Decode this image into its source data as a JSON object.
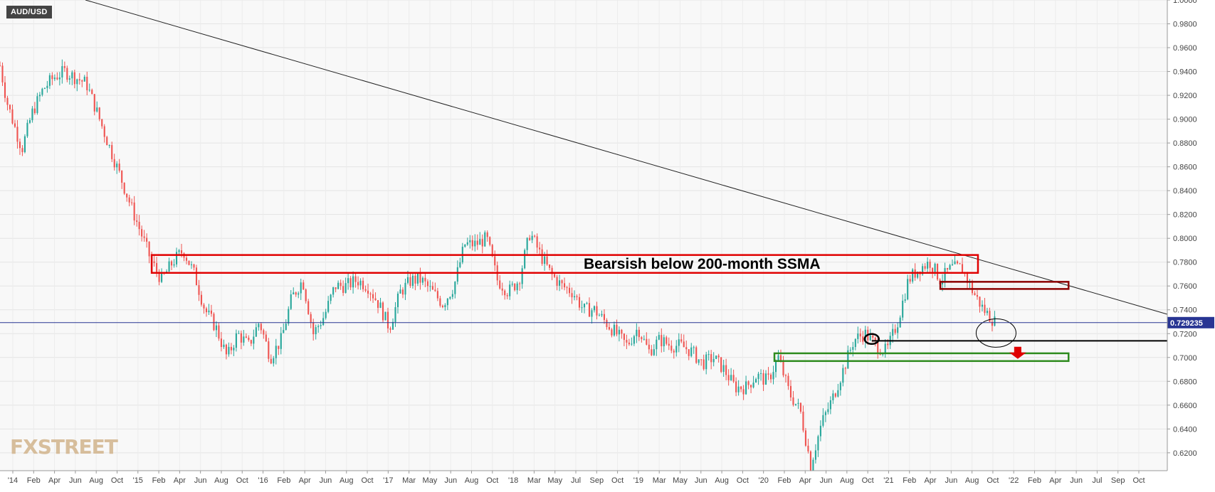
{
  "symbol": "AUD/USD",
  "watermark": "FXSTREET",
  "current_price_label": "0.729235",
  "annotation_text": "Bearsish below 200-month SSMA",
  "colors": {
    "bull": "#26a69a",
    "bear": "#ef5350",
    "zone_red": "#e00000",
    "zone_darkred": "#8b0000",
    "zone_green": "#2e8b1e",
    "price_line": "#283593",
    "price_tag": "#283593"
  },
  "chart_data": {
    "type": "candlestick",
    "title": "",
    "xlabel": "",
    "ylabel": "",
    "ylim": [
      0.605,
      1.0
    ],
    "y_ticks": [
      "1.0000",
      "0.9800",
      "0.9600",
      "0.9400",
      "0.9200",
      "0.9000",
      "0.8800",
      "0.8600",
      "0.8400",
      "0.8200",
      "0.8000",
      "0.7800",
      "0.7600",
      "0.7400",
      "0.7200",
      "0.7000",
      "0.6800",
      "0.6600",
      "0.6400",
      "0.6200"
    ],
    "x_ticks": [
      "'14",
      "Feb",
      "Apr",
      "Jun",
      "Aug",
      "Oct",
      "'15",
      "Feb",
      "Apr",
      "Jun",
      "Aug",
      "Oct",
      "'16",
      "Feb",
      "Apr",
      "Jun",
      "Aug",
      "Oct",
      "'17",
      "Mar",
      "May",
      "Jun",
      "Aug",
      "Oct",
      "'18",
      "Mar",
      "May",
      "Jul",
      "Sep",
      "Oct",
      "'19",
      "Mar",
      "May",
      "Jun",
      "Aug",
      "Oct",
      "'20",
      "Feb",
      "Apr",
      "Jun",
      "Aug",
      "Oct",
      "'21",
      "Feb",
      "Apr",
      "Jun",
      "Aug",
      "Oct",
      "'22",
      "Feb",
      "Apr",
      "Jun",
      "Jul",
      "Sep",
      "Oct"
    ],
    "x_range": [
      "2013-12-01",
      "2022-11-30"
    ],
    "path_points": [
      [
        "2013-12-01",
        0.945
      ],
      [
        "2013-12-20",
        0.915
      ],
      [
        "2014-01-15",
        0.89
      ],
      [
        "2014-02-01",
        0.875
      ],
      [
        "2014-03-01",
        0.905
      ],
      [
        "2014-04-01",
        0.925
      ],
      [
        "2014-05-01",
        0.935
      ],
      [
        "2014-06-01",
        0.94
      ],
      [
        "2014-07-01",
        0.935
      ],
      [
        "2014-08-01",
        0.93
      ],
      [
        "2014-09-01",
        0.905
      ],
      [
        "2014-10-01",
        0.88
      ],
      [
        "2014-11-01",
        0.855
      ],
      [
        "2014-12-01",
        0.83
      ],
      [
        "2015-01-01",
        0.805
      ],
      [
        "2015-02-01",
        0.78
      ],
      [
        "2015-03-01",
        0.765
      ],
      [
        "2015-04-01",
        0.78
      ],
      [
        "2015-05-01",
        0.79
      ],
      [
        "2015-06-01",
        0.77
      ],
      [
        "2015-07-01",
        0.74
      ],
      [
        "2015-08-01",
        0.725
      ],
      [
        "2015-09-01",
        0.7
      ],
      [
        "2015-10-01",
        0.72
      ],
      [
        "2015-11-01",
        0.71
      ],
      [
        "2015-12-01",
        0.73
      ],
      [
        "2016-01-01",
        0.7
      ],
      [
        "2016-02-01",
        0.715
      ],
      [
        "2016-03-01",
        0.75
      ],
      [
        "2016-04-01",
        0.765
      ],
      [
        "2016-05-01",
        0.72
      ],
      [
        "2016-06-01",
        0.735
      ],
      [
        "2016-07-01",
        0.76
      ],
      [
        "2016-08-01",
        0.76
      ],
      [
        "2016-09-01",
        0.765
      ],
      [
        "2016-10-01",
        0.76
      ],
      [
        "2016-11-01",
        0.745
      ],
      [
        "2016-12-01",
        0.725
      ],
      [
        "2017-01-01",
        0.755
      ],
      [
        "2017-02-01",
        0.765
      ],
      [
        "2017-03-01",
        0.765
      ],
      [
        "2017-04-01",
        0.755
      ],
      [
        "2017-05-01",
        0.745
      ],
      [
        "2017-06-01",
        0.76
      ],
      [
        "2017-07-01",
        0.795
      ],
      [
        "2017-08-01",
        0.795
      ],
      [
        "2017-09-01",
        0.8
      ],
      [
        "2017-10-01",
        0.765
      ],
      [
        "2017-11-01",
        0.755
      ],
      [
        "2017-12-01",
        0.765
      ],
      [
        "2018-01-01",
        0.805
      ],
      [
        "2018-02-01",
        0.785
      ],
      [
        "2018-03-01",
        0.77
      ],
      [
        "2018-04-01",
        0.76
      ],
      [
        "2018-05-01",
        0.755
      ],
      [
        "2018-06-01",
        0.74
      ],
      [
        "2018-07-01",
        0.74
      ],
      [
        "2018-08-01",
        0.73
      ],
      [
        "2018-09-01",
        0.72
      ],
      [
        "2018-10-01",
        0.71
      ],
      [
        "2018-11-01",
        0.725
      ],
      [
        "2018-12-01",
        0.705
      ],
      [
        "2019-01-01",
        0.715
      ],
      [
        "2019-02-01",
        0.71
      ],
      [
        "2019-03-01",
        0.71
      ],
      [
        "2019-04-01",
        0.705
      ],
      [
        "2019-05-01",
        0.695
      ],
      [
        "2019-06-01",
        0.7
      ],
      [
        "2019-07-01",
        0.69
      ],
      [
        "2019-08-01",
        0.675
      ],
      [
        "2019-09-01",
        0.675
      ],
      [
        "2019-10-01",
        0.685
      ],
      [
        "2019-11-01",
        0.68
      ],
      [
        "2019-12-01",
        0.7
      ],
      [
        "2020-01-01",
        0.67
      ],
      [
        "2020-02-01",
        0.655
      ],
      [
        "2020-03-01",
        0.61
      ],
      [
        "2020-04-01",
        0.645
      ],
      [
        "2020-05-01",
        0.665
      ],
      [
        "2020-06-01",
        0.69
      ],
      [
        "2020-07-01",
        0.715
      ],
      [
        "2020-08-01",
        0.72
      ],
      [
        "2020-09-01",
        0.71
      ],
      [
        "2020-10-01",
        0.705
      ],
      [
        "2020-11-01",
        0.73
      ],
      [
        "2020-12-01",
        0.765
      ],
      [
        "2021-01-01",
        0.775
      ],
      [
        "2021-02-01",
        0.78
      ],
      [
        "2021-03-01",
        0.765
      ],
      [
        "2021-04-01",
        0.775
      ],
      [
        "2021-05-01",
        0.775
      ],
      [
        "2021-06-01",
        0.755
      ],
      [
        "2021-07-01",
        0.74
      ],
      [
        "2021-08-01",
        0.73
      ]
    ]
  }
}
